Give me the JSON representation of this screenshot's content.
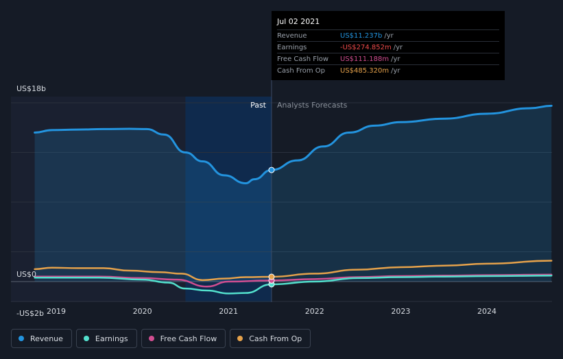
{
  "chart_data": {
    "type": "line",
    "y_tick_labels": [
      "US$18b",
      "US$0",
      "-US$2b"
    ],
    "ylim": [
      -2,
      18
    ],
    "x_tick_labels": [
      "2019",
      "2020",
      "2021",
      "2022",
      "2023",
      "2024"
    ],
    "past_label": "Past",
    "forecast_label": "Analysts Forecasts",
    "series": [
      {
        "name": "Revenue",
        "color": "#2394df",
        "points": [
          [
            2018.75,
            15.0
          ],
          [
            2018.95,
            15.25
          ],
          [
            2019.25,
            15.3
          ],
          [
            2019.55,
            15.35
          ],
          [
            2019.85,
            15.38
          ],
          [
            2020.05,
            15.35
          ],
          [
            2020.25,
            14.8
          ],
          [
            2020.5,
            13.0
          ],
          [
            2020.7,
            12.1
          ],
          [
            2020.95,
            10.7
          ],
          [
            2021.2,
            9.9
          ],
          [
            2021.3,
            10.3
          ],
          [
            2021.5,
            11.237
          ],
          [
            2021.8,
            12.2
          ],
          [
            2022.1,
            13.6
          ],
          [
            2022.4,
            15.0
          ],
          [
            2022.7,
            15.7
          ],
          [
            2023.0,
            16.05
          ],
          [
            2023.5,
            16.4
          ],
          [
            2024.0,
            16.9
          ],
          [
            2024.5,
            17.45
          ],
          [
            2024.75,
            17.7
          ]
        ]
      },
      {
        "name": "Earnings",
        "color": "#53e0cd",
        "points": [
          [
            2018.75,
            0.4
          ],
          [
            2019.5,
            0.4
          ],
          [
            2020.0,
            0.2
          ],
          [
            2020.3,
            -0.1
          ],
          [
            2020.5,
            -0.7
          ],
          [
            2020.75,
            -0.9
          ],
          [
            2021.0,
            -1.2
          ],
          [
            2021.2,
            -1.15
          ],
          [
            2021.5,
            -0.275
          ],
          [
            2022.0,
            0.0
          ],
          [
            2022.5,
            0.35
          ],
          [
            2023.0,
            0.45
          ],
          [
            2023.5,
            0.5
          ],
          [
            2024.0,
            0.55
          ],
          [
            2024.75,
            0.6
          ]
        ]
      },
      {
        "name": "Free Cash Flow",
        "color": "#d14e91",
        "points": [
          [
            2018.75,
            0.5
          ],
          [
            2019.5,
            0.5
          ],
          [
            2020.0,
            0.35
          ],
          [
            2020.4,
            0.2
          ],
          [
            2020.75,
            -0.5
          ],
          [
            2021.0,
            0.0
          ],
          [
            2021.5,
            0.111
          ],
          [
            2022.0,
            0.25
          ],
          [
            2022.5,
            0.45
          ],
          [
            2023.0,
            0.55
          ],
          [
            2023.5,
            0.6
          ],
          [
            2024.0,
            0.65
          ],
          [
            2024.75,
            0.7
          ]
        ]
      },
      {
        "name": "Cash From Op",
        "color": "#e6a24b",
        "points": [
          [
            2018.75,
            1.25
          ],
          [
            2018.95,
            1.4
          ],
          [
            2019.25,
            1.35
          ],
          [
            2019.55,
            1.35
          ],
          [
            2019.85,
            1.1
          ],
          [
            2020.2,
            0.95
          ],
          [
            2020.45,
            0.8
          ],
          [
            2020.7,
            0.15
          ],
          [
            2020.95,
            0.3
          ],
          [
            2021.2,
            0.45
          ],
          [
            2021.5,
            0.485
          ],
          [
            2022.0,
            0.8
          ],
          [
            2022.5,
            1.2
          ],
          [
            2023.0,
            1.45
          ],
          [
            2023.5,
            1.6
          ],
          [
            2024.0,
            1.8
          ],
          [
            2024.75,
            2.1
          ]
        ]
      }
    ],
    "highlight_x": 2021.5
  },
  "tooltip": {
    "date": "Jul 02 2021",
    "rows": [
      {
        "label": "Revenue",
        "value": "US$11.237b",
        "unit": "/yr",
        "color": "#2394df"
      },
      {
        "label": "Earnings",
        "value": "-US$274.852m",
        "unit": "/yr",
        "color": "#ef4b4b"
      },
      {
        "label": "Free Cash Flow",
        "value": "US$111.188m",
        "unit": "/yr",
        "color": "#d14e91"
      },
      {
        "label": "Cash From Op",
        "value": "US$485.320m",
        "unit": "/yr",
        "color": "#e6a24b"
      }
    ]
  },
  "legend": [
    {
      "label": "Revenue",
      "color": "#2394df"
    },
    {
      "label": "Earnings",
      "color": "#53e0cd"
    },
    {
      "label": "Free Cash Flow",
      "color": "#d14e91"
    },
    {
      "label": "Cash From Op",
      "color": "#e6a24b"
    }
  ]
}
